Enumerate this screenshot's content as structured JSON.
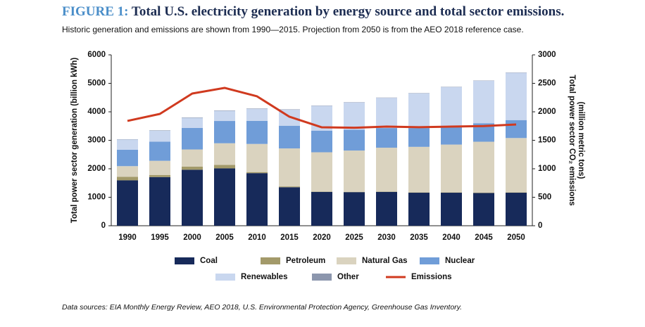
{
  "chart_data": {
    "type": "bar",
    "figure_label": "FIGURE 1:",
    "title": "Total U.S. electricity generation by energy source and total sector emissions.",
    "subtitle": "Historic generation and emissions are shown from 1990—2015. Projection from 2050 is from the AEO 2018 reference case.",
    "ylabel": "Total power sector generation (billion kWh)",
    "y2label": [
      "Total power sector CO₂ emissions",
      "(million metric tons)"
    ],
    "source": "Data sources: EIA Monthly Energy Review, AEO 2018, U.S. Environmental Protection Agency, Greenhouse Gas Inventory.",
    "categories": [
      "1990",
      "1995",
      "2000",
      "2005",
      "2010",
      "2015",
      "2020",
      "2025",
      "2030",
      "2035",
      "2040",
      "2045",
      "2050"
    ],
    "stacked": true,
    "series": [
      {
        "name": "Coal",
        "color": "#172a5a",
        "values": [
          1594,
          1709,
          1966,
          2013,
          1847,
          1352,
          1190,
          1180,
          1190,
          1160,
          1160,
          1150,
          1160
        ]
      },
      {
        "name": "Petroleum",
        "color": "#a39a6a",
        "values": [
          126,
          75,
          111,
          122,
          37,
          28,
          10,
          10,
          10,
          10,
          10,
          10,
          10
        ]
      },
      {
        "name": "Natural Gas",
        "color": "#dad3bf",
        "values": [
          373,
          496,
          601,
          761,
          988,
          1335,
          1380,
          1450,
          1540,
          1600,
          1680,
          1790,
          1910
        ]
      },
      {
        "name": "Nuclear",
        "color": "#709dd8",
        "values": [
          577,
          673,
          754,
          782,
          807,
          797,
          760,
          730,
          690,
          660,
          650,
          650,
          630
        ]
      },
      {
        "name": "Renewables",
        "color": "#c9d7ef",
        "values": [
          357,
          384,
          357,
          358,
          427,
          560,
          870,
          960,
          1060,
          1220,
          1370,
          1490,
          1660
        ]
      },
      {
        "name": "Other",
        "color": "#8c96ad",
        "values": [
          10,
          14,
          14,
          13,
          13,
          14,
          10,
          10,
          10,
          10,
          10,
          10,
          10
        ]
      },
      {
        "name": "Emissions",
        "color": "#d03a1f",
        "type": "line",
        "axis": "y2",
        "values": [
          1840,
          1963,
          2321,
          2420,
          2272,
          1914,
          1728,
          1720,
          1740,
          1730,
          1740,
          1750,
          1778
        ]
      }
    ],
    "ylim": [
      0,
      6000
    ],
    "yticks": [
      0,
      1000,
      2000,
      3000,
      4000,
      5000,
      6000
    ],
    "y2lim": [
      0,
      3000
    ],
    "y2ticks": [
      0,
      500,
      1000,
      1500,
      2000,
      2500,
      3000
    ],
    "grid": false
  }
}
